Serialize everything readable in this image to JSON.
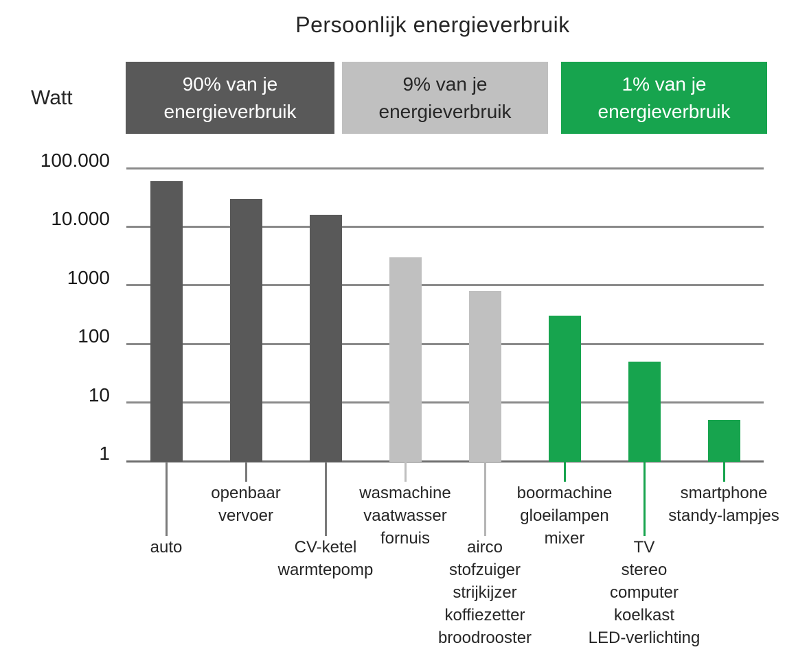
{
  "page": {
    "title": "Persoonlijk energieverbruik",
    "y_axis_unit": "Watt"
  },
  "legend": {
    "items": [
      {
        "lines": [
          "90% van je",
          "energieverbruik"
        ],
        "bg": "#595959",
        "fg": "#ffffff"
      },
      {
        "lines": [
          "9% van je",
          "energieverbruik"
        ],
        "bg": "#c0c0c0",
        "fg": "#262626"
      },
      {
        "lines": [
          "1% van je",
          "energieverbruik"
        ],
        "bg": "#17a44e",
        "fg": "#ffffff"
      }
    ]
  },
  "chart_data": {
    "type": "bar",
    "title": "Persoonlijk energieverbruik",
    "ylabel": "Watt",
    "xlabel": "",
    "yscale": "log",
    "ylim": [
      1,
      100000
    ],
    "grid": true,
    "legend_position": "top",
    "ytick_values": [
      100000,
      10000,
      1000,
      100,
      10,
      1
    ],
    "ytick_labels": [
      "100.000",
      "10.000",
      "1000",
      "100",
      "10",
      "1"
    ],
    "categories": [
      "auto",
      "openbaar vervoer",
      "CV-ketel warmtepomp",
      "wasmachine vaatwasser fornuis",
      "airco stofzuiger strijkijzer koffiezetter broodrooster",
      "boormachine gloeilampen mixer",
      "TV stereo computer koelkast LED-verlichting",
      "smartphone standy-lampjes"
    ],
    "values": [
      60000,
      30000,
      16000,
      3000,
      800,
      300,
      50,
      5
    ],
    "series_note": "values in Watt, estimated from log gridlines",
    "bars": [
      {
        "label_lines": [
          "auto"
        ],
        "value": 60000,
        "series": "90% van je energieverbruik",
        "color": "#595959",
        "leader_color": "#7a7a7a",
        "label_row": "low"
      },
      {
        "label_lines": [
          "openbaar",
          "vervoer"
        ],
        "value": 30000,
        "series": "90% van je energieverbruik",
        "color": "#595959",
        "leader_color": "#7a7a7a",
        "label_row": "high"
      },
      {
        "label_lines": [
          "CV-ketel",
          "warmtepomp"
        ],
        "value": 16000,
        "series": "90% van je energieverbruik",
        "color": "#595959",
        "leader_color": "#7a7a7a",
        "label_row": "low"
      },
      {
        "label_lines": [
          "wasmachine",
          "vaatwasser",
          "fornuis"
        ],
        "value": 3000,
        "series": "9% van je energieverbruik",
        "color": "#c0c0c0",
        "leader_color": "#bfbfbf",
        "label_row": "high"
      },
      {
        "label_lines": [
          "airco",
          "stofzuiger",
          "strijkijzer",
          "koffiezetter",
          "broodrooster"
        ],
        "value": 800,
        "series": "9% van je energieverbruik",
        "color": "#c0c0c0",
        "leader_color": "#b5b5b5",
        "label_row": "low"
      },
      {
        "label_lines": [
          "boormachine",
          "gloeilampen",
          "mixer"
        ],
        "value": 300,
        "series": "1% van je energieverbruik",
        "color": "#17a44e",
        "leader_color": "#17a44e",
        "label_row": "high"
      },
      {
        "label_lines": [
          "TV",
          "stereo",
          "computer",
          "koelkast",
          "LED-verlichting"
        ],
        "value": 50,
        "series": "1% van je energieverbruik",
        "color": "#17a44e",
        "leader_color": "#17a44e",
        "label_row": "low"
      },
      {
        "label_lines": [
          "smartphone",
          "standy-lampjes"
        ],
        "value": 5,
        "series": "1% van je energieverbruik",
        "color": "#17a44e",
        "leader_color": "#17a44e",
        "label_row": "high"
      }
    ]
  },
  "colors": {
    "background": "#ffffff",
    "gridline": "#8a8a8a",
    "axis": "#6e6e6e",
    "text": "#262626",
    "series_90": "#595959",
    "series_9": "#c0c0c0",
    "series_1": "#17a44e"
  }
}
